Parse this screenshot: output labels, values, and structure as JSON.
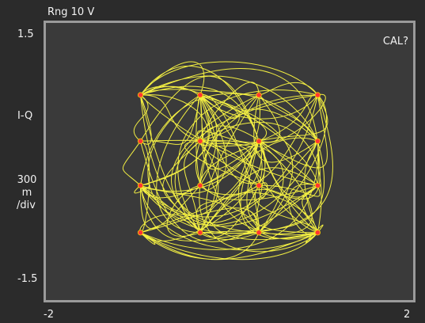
{
  "display": {
    "range_label": "Rng 10  V",
    "status": "CAL?",
    "y_axis": {
      "max_label": "1.5",
      "mid_label": "I-Q",
      "scale_lines": [
        "300",
        "m",
        "/div"
      ],
      "min_label": "-1.5"
    },
    "x_axis": {
      "min_label": "-2",
      "max_label": "2"
    }
  },
  "colors": {
    "background": "#2b2b2b",
    "plot_background": "#3a3a3a",
    "plot_border": "#9a9a9a",
    "trace": "#f2ee42",
    "symbol": "#ff3535"
  },
  "chart_data": {
    "type": "scatter",
    "title": "",
    "xlabel": "",
    "ylabel": "I-Q",
    "xlim": [
      -2,
      2
    ],
    "ylim": [
      -1.5,
      1.5
    ],
    "constellation_points": [
      {
        "x": -0.97,
        "y": 0.72
      },
      {
        "x": -0.32,
        "y": 0.72
      },
      {
        "x": 0.32,
        "y": 0.72
      },
      {
        "x": 0.96,
        "y": 0.72
      },
      {
        "x": -0.97,
        "y": 0.22
      },
      {
        "x": -0.32,
        "y": 0.22
      },
      {
        "x": 0.32,
        "y": 0.22
      },
      {
        "x": 0.96,
        "y": 0.22
      },
      {
        "x": -0.97,
        "y": -0.26
      },
      {
        "x": -0.32,
        "y": -0.26
      },
      {
        "x": 0.32,
        "y": -0.26
      },
      {
        "x": 0.96,
        "y": -0.26
      },
      {
        "x": -0.97,
        "y": -0.77
      },
      {
        "x": -0.32,
        "y": -0.77
      },
      {
        "x": 0.32,
        "y": -0.77
      },
      {
        "x": 0.96,
        "y": -0.77
      }
    ]
  }
}
